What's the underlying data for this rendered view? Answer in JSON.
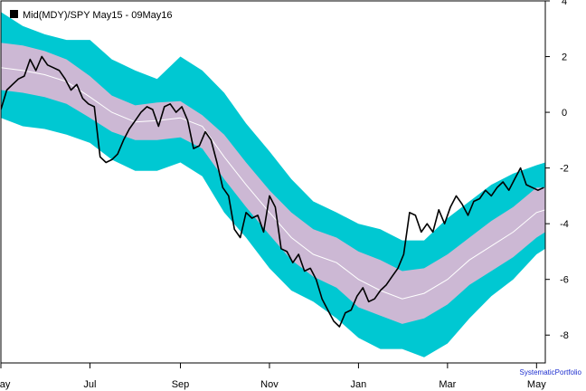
{
  "chart_data": {
    "type": "line",
    "title": "Mid(MDY)/SPY May15 - 09May16",
    "watermark": "SystematicPortfolio",
    "x_ticks": [
      "May",
      "Jul",
      "Sep",
      "Nov",
      "Jan",
      "Mar",
      "May"
    ],
    "y_ticks": [
      "4",
      "2",
      "0",
      "-2",
      "-4",
      "-6",
      "-8"
    ],
    "ylim": [
      -9,
      4
    ],
    "y_axis_side": "right",
    "grid": false,
    "colors": {
      "outer_band": "#00c8d2",
      "inner_band": "#ccb8d4",
      "center_line": "#ffffff",
      "price_line": "#000000",
      "legend_marker": "#000000"
    },
    "x_range_days": [
      0,
      373
    ],
    "x_tick_days": [
      0,
      61,
      123,
      184,
      245,
      306,
      367
    ],
    "bands": {
      "x": [
        0,
        15,
        30,
        45,
        61,
        76,
        92,
        107,
        123,
        138,
        153,
        168,
        184,
        199,
        214,
        230,
        245,
        260,
        275,
        290,
        306,
        321,
        336,
        351,
        367,
        373
      ],
      "center": [
        1.6,
        1.5,
        1.35,
        1.1,
        0.55,
        0.0,
        -0.35,
        -0.3,
        -0.2,
        -0.5,
        -1.6,
        -2.6,
        -3.6,
        -4.5,
        -5.1,
        -5.4,
        -6.0,
        -6.4,
        -6.7,
        -6.5,
        -6.0,
        -5.3,
        -4.8,
        -4.3,
        -3.6,
        -3.5
      ],
      "inner_upper": [
        2.5,
        2.4,
        2.2,
        1.9,
        1.3,
        0.6,
        0.25,
        0.35,
        0.4,
        -0.1,
        -0.8,
        -1.8,
        -2.8,
        -3.6,
        -4.2,
        -4.5,
        -5.0,
        -5.3,
        -5.7,
        -5.6,
        -5.1,
        -4.5,
        -3.9,
        -3.4,
        -2.7,
        -2.7
      ],
      "inner_lower": [
        0.8,
        0.7,
        0.55,
        0.3,
        -0.2,
        -0.7,
        -1.0,
        -1.0,
        -0.9,
        -1.3,
        -2.4,
        -3.4,
        -4.4,
        -5.3,
        -5.9,
        -6.3,
        -7.0,
        -7.3,
        -7.6,
        -7.4,
        -6.9,
        -6.2,
        -5.7,
        -5.2,
        -4.5,
        -4.3
      ],
      "outer_upper": [
        3.6,
        3.1,
        2.8,
        2.6,
        2.6,
        1.9,
        1.5,
        1.2,
        2.0,
        1.5,
        0.7,
        -0.4,
        -1.4,
        -2.4,
        -3.2,
        -3.6,
        -4.0,
        -4.2,
        -4.6,
        -4.6,
        -3.8,
        -3.2,
        -2.6,
        -2.2,
        -1.9,
        -1.8
      ],
      "outer_lower": [
        -0.2,
        -0.5,
        -0.6,
        -0.8,
        -1.1,
        -1.7,
        -2.1,
        -2.1,
        -1.8,
        -2.3,
        -3.6,
        -4.5,
        -5.6,
        -6.4,
        -6.8,
        -7.4,
        -8.1,
        -8.5,
        -8.5,
        -8.8,
        -8.3,
        -7.4,
        -6.6,
        -6.0,
        -5.1,
        -4.9
      ]
    },
    "series": [
      {
        "x": [
          0,
          4,
          8,
          12,
          16,
          20,
          24,
          28,
          32,
          36,
          40,
          44,
          48,
          52,
          56,
          60,
          64,
          68,
          72,
          76,
          80,
          84,
          88,
          92,
          96,
          100,
          104,
          108,
          112,
          116,
          120,
          124,
          128,
          132,
          136,
          140,
          144,
          148,
          152,
          156,
          160,
          164,
          168,
          172,
          176,
          180,
          184,
          188,
          192,
          196,
          200,
          204,
          208,
          212,
          216,
          220,
          224,
          228,
          232,
          236,
          240,
          244,
          248,
          252,
          256,
          260,
          264,
          268,
          272,
          276,
          280,
          284,
          288,
          292,
          296,
          300,
          304,
          308,
          312,
          316,
          320,
          324,
          328,
          332,
          336,
          340,
          344,
          348,
          352,
          356,
          360,
          364,
          368,
          372
        ],
        "values": [
          0.1,
          0.8,
          1.0,
          1.2,
          1.3,
          1.9,
          1.5,
          2.0,
          1.7,
          1.6,
          1.5,
          1.2,
          0.8,
          1.0,
          0.5,
          0.3,
          0.2,
          -1.6,
          -1.8,
          -1.7,
          -1.5,
          -1.0,
          -0.6,
          -0.3,
          0.0,
          0.2,
          0.1,
          -0.5,
          0.2,
          0.3,
          0.0,
          0.2,
          -0.3,
          -1.3,
          -1.2,
          -0.7,
          -1.0,
          -1.8,
          -2.7,
          -3.0,
          -4.2,
          -4.5,
          -3.6,
          -3.8,
          -3.7,
          -4.3,
          -3.0,
          -3.4,
          -4.9,
          -5.0,
          -5.4,
          -5.1,
          -5.7,
          -5.6,
          -6.0,
          -6.7,
          -7.1,
          -7.5,
          -7.7,
          -7.2,
          -7.1,
          -6.6,
          -6.3,
          -6.8,
          -6.7,
          -6.4,
          -6.2,
          -5.9,
          -5.6,
          -5.1,
          -3.6,
          -3.7,
          -4.3,
          -4.0,
          -4.3,
          -3.5,
          -4.0,
          -3.4,
          -3.0,
          -3.3,
          -3.7,
          -3.2,
          -3.1,
          -2.8,
          -3.0,
          -2.7,
          -2.5,
          -2.8,
          -2.4,
          -2.0,
          -2.6,
          -2.7,
          -2.8,
          -2.7
        ]
      }
    ]
  }
}
